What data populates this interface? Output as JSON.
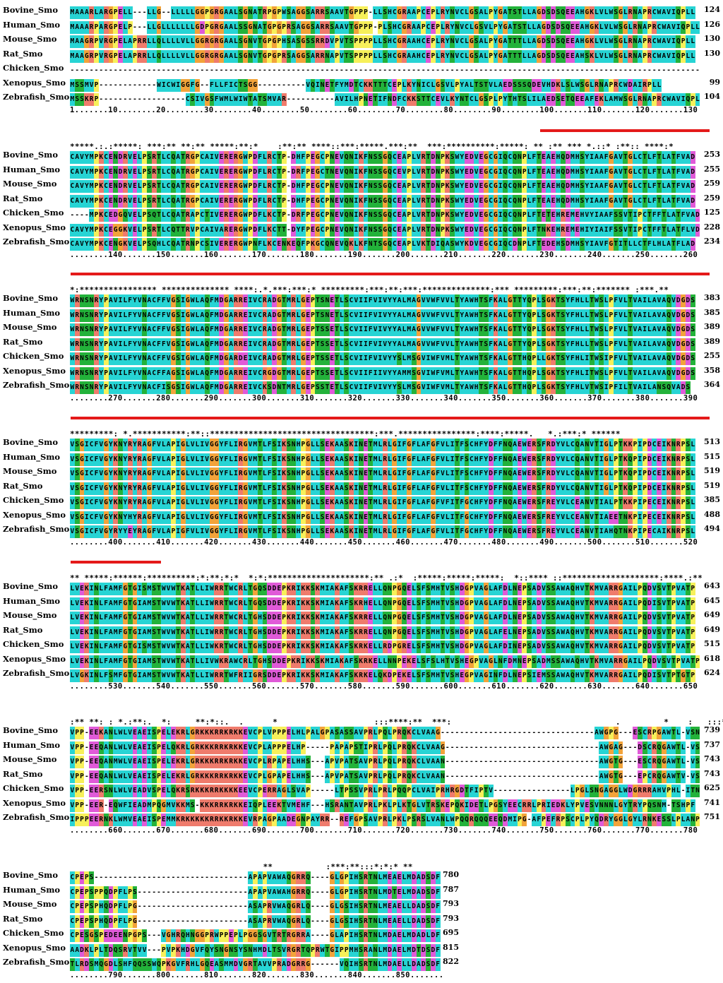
{
  "colors": {
    "cyan": "#27d4d4",
    "green": "#23b23a",
    "magenta": "#e05ad8",
    "yellow": "#f7f05a",
    "orange": "#f2a33a",
    "salmon": "#ef7b6c",
    "red_bar": "#e41a1a"
  },
  "blocks": [
    {
      "start_col_offset": 0,
      "conservation": "",
      "rows": [
        {
          "name": "Bovine_Smo",
          "seq": "MAAARLARGPELL---LLG--LLLLLGGPGRGAALSGNATRPGPWSAGGSARRSAAVTGPPP-LLSHCGRAAPCEPLRYNVCLGSALPYGATSTLLAGDSDSQEEAHGKLVLWSGLRNAPRCWAVIQPLL",
          "end": "124"
        },
        {
          "name": "Human_Smo",
          "seq": "MAAARPARGPELP---LLGLLLLLLLGDPGRGAALSSGNATGPGPRSAGGSARRSAAVTGPPP-PLSHCGRAAPCEPLRYNVCLGSVLPYGATSTLLAGDSDSQEEAHGKLVLWSGLRNAPRCWAVIQPLL",
          "end": "126"
        },
        {
          "name": "Mouse_Smo",
          "seq": "MAAGRPVRGPELAPRRLLQLLLLVLLGGRGRGAALSGNVTGPGPHSASGSSRRDVPVTSPPPPLLSHCGRAAHCEPLRYNVCLGSALPYGATTTLLAGDSDSQEEAHGKLVLWSGLRNAPRCWAVIQPLL",
          "end": "130"
        },
        {
          "name": "Rat_Smo",
          "seq": "MAAGRPVRGPELAPRRLLQLLLLVLLGGRGRGAALSGNVTGPGPRSAGGSARRNAPVTSPPPPLLSHCGRAAHCEPLRYNVCLGSALPYGATTTLLAGDSDSQEEAHSKLVLWSGLRNAPRCWAVIQPLL",
          "end": "130"
        },
        {
          "name": "Chicken_Smo",
          "seq": "-----------------------------------------------------------------------------------------------------------------------------------",
          "end": ""
        },
        {
          "name": "Xenopus_Smo",
          "seq": "MSSMVP------------WICWIGGFG--FLLFICTSGG----------VQINETFYMDTCKKTTTCEPLKYNICLGSVLPYALTSTVLAEDSSSQDEVHDKLSLWSGLRNAPRCWDAIRPLL",
          "end": "99"
        },
        {
          "name": "Zebrafish_Smo",
          "seq": "MSSKRP------------------CSIVGSFWMLWIWTATSMVAR----------AVILHPNETIFNDFCKKSTTCEVLKYNTCLGSPLPYTHTSLILAEDSETQEEAFEKLAMWSGLRNAPRCWAVIQPLL",
          "end": "104"
        }
      ],
      "ruler": "1.......10........20........30........40........50........60........70........80........90........100.......110.......120.......130"
    },
    {
      "conservation": "*****.:.:*****: ***:** **:** *****:**:*    :**:** ****::***:*****.***:**  ***:**********:*****: ** :** *** *.::* :**:: ****:*",
      "rows": [
        {
          "name": "Bovine_Smo",
          "seq": "CAVYMPKCENDRVELPSRTLCQATRGPCAIVERERGWPDFLRCTP-DHFPEGCPNEVQNIKFNSSGQCEAPLVRTDNPKSWYEDVEGCGIQCQNPLFTEAEHQDMHSYIAAFGAVTGLCTLFTLATFVAD",
          "end": "253"
        },
        {
          "name": "Human_Smo",
          "seq": "CAVYMPKCENDRVELPSRTLCQATRGPCAIVERERGWPDFLRCTP-DRFPEGCTNEVQNIKFNSSGQCEVPLVRTDNPKSWYEDVEGCGIQCQNPLFTEAEHQDMHSYIAAFGAVTGLCTLFTLATFVAD",
          "end": "255"
        },
        {
          "name": "Mouse_Smo",
          "seq": "CAVYMPKCENDRVELPSRTLCQATRGPCAIVERERGWPDFLRCTP-DHFPEGCPNEVQNIKFNSSGQCEAPLVRTDNPKSWYEDVEGCGIQCQNPLFTEAEHQDMHSYIAAFGAVTGLCTLFTLATFVAD",
          "end": "259"
        },
        {
          "name": "Rat_Smo",
          "seq": "CAVYMPKCENDRVELPSRTLCQATRGPCAIVERERGWPDFLRCTP-DHFPEGCPNEVQNIKFNSSGQCEAPLVRTDNPKSWYEDVEGCGIQCQNPLFTEAEHQDMHSYIAAFGAVTGLCTLFTLATFVAD",
          "end": "259"
        },
        {
          "name": "Chicken_Smo",
          "seq": "----MPKCEDGQVELPSQTLCQATRAPCTIVERERGWPDFLKCTP-DRFPEGCPNEVQNIKFNSSGQCEAPLVRTDNPKSWYEDVEGCGIQCQNPLFTETEHREMEHVYIAAFSSVTIPCTFFTLATFVAD",
          "end": "125"
        },
        {
          "name": "Xenopus_Smo",
          "seq": "CAVYMPKCEGGKVELPSRTLCQTTRVPCAIVARERGWPDFLKCTT-DYFPEGCPNEVQNIKFNSSGQCEAPLVRTDNPKSWYEDVEGCGIQCQNPLFTNKEHREMEHIYIAIFSSVTIPCTFFTLATFLVD",
          "end": "228"
        },
        {
          "name": "Zebrafish_Smo",
          "seq": "CAVYMPKCENGKVELPSQHLCQATRNPCSIVERERGWPNFLKCENKEQFPKGCQNEVQKLKFNTSGQCEAPLVKTDIQASWYKDVEGCGIQCDNPLFTEDEHSDMHSYIAVFGTITLLCTFLHLATFLAD",
          "end": "234"
        }
      ],
      "ruler": "........140.......150.......160.......170.......180.......190.......200.......210.......220.......230.......240.......250.......260"
    },
    {
      "conservation": "*:**************** ************** ****:.*.***:***:* *********:***:**:***:**************:*** *********:***:**:******* :***.**",
      "rows": [
        {
          "name": "Bovine_Smo",
          "seq": "WRNSNRYPAVILFYVNACFFVGSIGWLAQFMDGARREIVCRADGTMRLGEPTSNETLSCVIIFVIVYYALMAGVVWFVVLTYAWHTSFKALGTTYQPLSGKTSYFHLLTWSLPFVLTVAILAVAQVDGDS",
          "end": "383"
        },
        {
          "name": "Human_Smo",
          "seq": "WRNSNRYPAVILFYVNACFFVGSIGWLAQFMDGARREIVCRADGTMRLGEPTSNETLSCVIIFVIVYYALMAGVVWFVVLTYAWHTSFKALGTTYQPLSGKTSYFHLLTWSLPFVLTVAILAVAQVDGDS",
          "end": "385"
        },
        {
          "name": "Mouse_Smo",
          "seq": "WRNSNRYPAVILFYVNACFFVGSIGWLAQFMDGARREIVCRADGTMRLGEPTSSETLSCVIIFVIVYYALMAGVVWFVVLTYAWHTSFKALGTTYQPLSGKTSYFHLLTWSLPFVLTVAILAVAQVDGDS",
          "end": "389"
        },
        {
          "name": "Rat_Smo",
          "seq": "WRNSNRYPAVILFYVNACFFVGSIGWLAQFMDGARREIVCRADGTMRLGEPTSSETLSCVIIFVIVYYALMAGVVWFVVLTYAWHTSFKALGTTYQPLSGKTSYFHLLTWSLPFVLTVAILAVAQVDGDS",
          "end": "389"
        },
        {
          "name": "Chicken_Smo",
          "seq": "WRNSNRYPAVILFYVNACFFVGSIGWLAQFMDGARDEIVCRADGTMRLGEPTSSETLSCVIIFVIVYYSLMSGVIWFVMLTYAWHTSFKALGTTHQPLLGKTSYFHLITWSIPFVLTVAILAVAQVDGDS",
          "end": "255"
        },
        {
          "name": "Xenopus_Smo",
          "seq": "WRNSNRYPAVILFYVNACFFAGSIGWLAQFMDGARREIVCRGDGTMRLGEPTSSETLSCVIIFIIVYYAMMSGVIWFVMLTYAWHTSFKALGTTHQPLSGKTSYFHLITWSLPFVLTVAILAVAQVDGDS",
          "end": "358"
        },
        {
          "name": "Zebrafish_Smo",
          "seq": "WRNSNRYPAVILFYVNACFISGSIGWLAQFMDGARREIVCKSDNTMRLGEPSSTETLSCVIIFVIVYYSLMSGVIWFVMLTYAWHTSFKALGTTHQPLSGKTSYFHLVTWSIPFILTVAILANSQVADS",
          "end": "364"
        }
      ],
      "ruler": "........270.......280.......290.......300.......310.......320.......330.......340.......350.......360.......370.......380.......390"
    },
    {
      "conservation": "*********: *.***********:**::**********************************:***.****************:****:*****.   *.:***:* ******",
      "rows": [
        {
          "name": "Bovine_Smo",
          "seq": "VSGICFVGYKNYRYRAGFVLAPIGLVLIVGGYFLIRGVMTLFSIKSNHPGLLSEKAASKINETMLRLGIFGFLAFGFVLITFSCHFYDFFNQAEWERSFRDYVLCQANVTIGLPTKKPIPDCEIKNRPSL",
          "end": "513"
        },
        {
          "name": "Human_Smo",
          "seq": "VSGICFVGYKNYRYRAGFVLAPIGLVLIVGGYFLIRGVMTLFSIKSNHPGLLSEKAASKINETMLRLGIFGFLAFGFVLITFSCHFYDFFNQAEWERSFRDYVLCQANVTIGLPTKQPIPDCEIKNRPSL",
          "end": "515"
        },
        {
          "name": "Mouse_Smo",
          "seq": "VSGICFVGYKNYRYRAGFVLAPIGLVLIVGGYFLIRGVMTLFSIKSNHPGLLSEKAASKINETMLRLGIFGFLAFGFVLITFSCHFYDFFNQAEWERSFRDYVLCQANVTIGLPTKQPIPDCEIKNRPSL",
          "end": "519"
        },
        {
          "name": "Rat_Smo",
          "seq": "VSGICFVGYKNYRYRAGFVLAPIGLVLIVGGYFLIRGVMTLFSIKSNHPGLLSEKAASKINETMLRLGIFGFLAFGFVLITFSCHFYDFFNQAEWERSFRDYVLCQANVTIGLPTKQPIPDCEIKNRPSL",
          "end": "519"
        },
        {
          "name": "Chicken_Smo",
          "seq": "VSGICFVGYKNYRYRAGFVLAPIGLVLIVGGYFLIRGVMTLFSIKSNHPGLLSEKAASKINETMLRLGIFGFLAFGFVFITFGCHFYDFFNQAEWERSFREYVLCEANVTIALPTKKPIPECEIKNRPSL",
          "end": "385"
        },
        {
          "name": "Xenopus_Smo",
          "seq": "VSGICFVGYKNYHYRAGFVLAPIGLVLIVGGYFLIRGVMTLFSIKSNHPGLLSEKAASKINETMLRLGIFGFLAFGFVLITFGCHFYDFFNQAEWERSFREYVLCEANVTIAEETNKPIPECEIKNRPSL",
          "end": "488"
        },
        {
          "name": "Zebrafish_Smo",
          "seq": "VSGICFVGYRYYEYRAGFVLAPIGFVLIVGGYFLIRGVMTLFSIKSNHPGLLSEKAASKINETMLRLGIFGFLAFGFVLITFGCHFYDFFNQAEWERSFREYVLCEANVTIAHQTNKPIPECAIKNRPSL",
          "end": "494"
        }
      ],
      "ruler": "........400.......410.......420.......430.......440.......450.......460.......470.......480.......490.......500.......510.......520"
    },
    {
      "conservation": "** *****:******:**********:*:**:*:*  *:*:*********************:** .:*  :*****:*****:*****:  *::**** ::********************:****.:**",
      "rows": [
        {
          "name": "Bovine_Smo",
          "seq": "LVEKINLFAMFGTGISMSTWVWTKATLLIWRRTWCRLTGQSDDEPKRIKKSKMIAKAFSKRRELLQNPGQELSFSMHTVSHDGPVAGLAFDLNEPSADVSSAWAQHVTKMVARRGAILPQDVSVTPVATP",
          "end": "643"
        },
        {
          "name": "Human_Smo",
          "seq": "LVEKINLFAMFGTGIAMSTWVWTKATLLIWRRTWCRLTGQSDDEPKRIKKSKMIAKAFSKRHELLQNPGQELSFSMHTVSHDGPVAGLAFDLNEPSADVSSAWAQHVTKMVARRGAILPQDISVTPVATP",
          "end": "645"
        },
        {
          "name": "Mouse_Smo",
          "seq": "LVEKINLFAMFGTGIAMSTWVWTKATLLIWRRTWCRLTGHSDDEPKRIKKSKMIAKAFSKRRELLQNPGQELSFSMHTVSHDGPVAGLAFDLNEPSADVSSAWAQHVTKMVARRGAILPQDVSVTPVATP",
          "end": "649"
        },
        {
          "name": "Rat_Smo",
          "seq": "LVEKINLFAMFGTGIAMSTWVWTKATLLIWRRTWCRLTGHSDDEPKRIKKSKMIAKAFSKRRELLQNPGQELSFSMHTVSHDGPVAGLAFELNEPSADVSSAWAQHVTKMVARRGAILPQDVSVTPVATP",
          "end": "649"
        },
        {
          "name": "Chicken_Smo",
          "seq": "LVEKINLFAMFGTGISMSTWVWTKATLLIWKRTWCRLTGHSDDEPKRIKKSKMIAKAFSKRKELLRDPGRELSFSMHTVSHDGPVAGLAFDINEPSADVSSAWAQHVTKMVARRGAILPQDVSVTPVATP",
          "end": "515"
        },
        {
          "name": "Xenopus_Smo",
          "seq": "LVEKINLFAMFGTGIAMSTWVWTKATLLIVWKRAWCRLTGHSDDEPKRIKKSKMIAKAFSKRKELLNNPEKELSFSLHTVSHEGPVAGLNFDMNEPSADMSSAWAQHVTKMVARRGAILPQDVSVTPVATP",
          "end": "618"
        },
        {
          "name": "Zebrafish_Smo",
          "seq": "LVGKINLFSMFGTGIAMSTWVWTKATLLIWRRTWFRIIGRSDDEPKRIKKSKMIAKAFSKRKELQKDPEKELSFSMHTVSHEGPVAGINFDLNEPSIEMSSAWAQHVTKMVARRGAILPQDISVTPTGTP",
          "end": "624"
        }
      ],
      "ruler": "........530.......540.......550.......560.......570.......580.......590.......600.......610.......620.......630.......640.......650"
    },
    {
      "conservation": ":** **: : *.:**:.  *:     **:*::.  .      *                    :::****:**  ***:                                  .         *    :   :::*:",
      "rows": [
        {
          "name": "Bovine_Smo",
          "seq": "VPP-EEKANLWLVEAEISPELEKRLGRKKKRRKRKKEVCPLVPPPELHLPALGPASASSAVPRLPQLPRQKCLVAAG--------------------------------AWGPG---ESCRPGAWTL-VSNPF",
          "end": "739"
        },
        {
          "name": "Human_Smo",
          "seq": "VPP-EEQANLWLVEAEISPELQKRLGRKKKRRKRKKEVCPLAPPPELHP-----PAPAPSTIPRLPQLPRQKCLVAAG--------------------------------AWGAG---DSCRQGAWTL-VSNPF",
          "end": "737"
        },
        {
          "name": "Mouse_Smo",
          "seq": "VPP-EEQANMWLVEAEISPELEKRLGRKKKRRKRKKEVCPLRPAPELHHS---APVPATSAVPRLPQLPRQKCLVAAN--------------------------------AWGTG---ESCRQGAWTL-VSNPF",
          "end": "743"
        },
        {
          "name": "Rat_Smo",
          "seq": "VPP-EEQANLWLVEAEISPELEKRLGRKKKRRKRKKEVCPLGPAPELHHS---APVPATSAVPRLPQLPRQKCLVAAN--------------------------------AWGTG---EPCRQGAWTV-VSNPF",
          "end": "743"
        },
        {
          "name": "Chicken_Smo",
          "seq": "VPP-EERSNLWLVEADVSPELQKRSRKKKRRKKKKEEVCPERRAGLSVAP-----LTPSSVPRLPRLPQQPCLVAIPRHRGDTFIPTV----------------LPGLSNGAGGLWDGRRRAHVPHL-ITNPF",
          "end": "625"
        },
        {
          "name": "Xenopus_Smo",
          "seq": "VPP-EER-EQWFIEADMPQGMVKKMS-KKKRRKRKKEIQPLEEKTVMEHF---HSRANTAVPRLPKLPLKTGLVTRSKEPQKIDETLPGSYEECRRLPRIEDKLYPVESVNNNLGYTRYPQSNM-TSHPF",
          "end": "741"
        },
        {
          "name": "Zebrafish_Smo",
          "seq": "IPPPEERNKLWMVEAEISPEMMKRKKKKKRRKKRKKEVRPAGPAADEGNPAYRR--REFGPSAVPRLPKLPSRSLVANLWPQQRQQQEEQDMIPG-AFPEFRPSCPLPYQDRYGGLGYLRNKESSLPLANPL",
          "end": "751"
        }
      ],
      "ruler": "........660.......670.......680.......690.......700.......710.......720.......730.......740.......750.......760.......770.......780"
    },
    {
      "conservation": "                                        **           :***:**:::*:*:* **",
      "rows": [
        {
          "name": "Bovine_Smo",
          "seq": "CPEPS--------------------------------APAPVAWAQGRRQ----GLGPIHSRTNLMEAELMDADSDF",
          "end": "780"
        },
        {
          "name": "Human_Smo",
          "seq": "CPEPSPPQDPFLPS-----------------------APAPVAWAHGRRQ----GLGPIHSRTNLMDTELMDADSDF",
          "end": "787"
        },
        {
          "name": "Mouse_Smo",
          "seq": "CPEPSPHQDPFLPG-----------------------ASAPRVWAQGRLQ----GLGSIHSRTNLMEAELLDADSDF",
          "end": "793"
        },
        {
          "name": "Rat_Smo",
          "seq": "CPEPSPHQDPFLPG-----------------------ASAPRVWAQGRLQ----GLGSIHSRTNLMEAELLDADSDF",
          "end": "793"
        },
        {
          "name": "Chicken_Smo",
          "seq": "CPESGSPEDEENPGPS---VGHRQHNGGPRWPPEPLPGGSGVTRTRGRRA----GLAPIHSRTNLMDAELMDADLDF",
          "end": "695"
        },
        {
          "name": "Xenopus_Smo",
          "seq": "AADKLPLTDQSRVTVV---PVPKHDGVFQYSNGNSYSNHMDLTSVRGRTQPRWTGIPPMHSRANLMDAELMDTDSDF",
          "end": "815"
        },
        {
          "name": "Zebrafish_Smo",
          "seq": "TLRDSMQGDLSHFQQSSWQPKGVFRHLGQEASMMDVGRTAVVPRADGRRG------VQIHSRTNLMDAELLDADSDF",
          "end": "822"
        }
      ],
      "ruler": "........790.......800.......810.......820.......830.......840.......850......."
    }
  ]
}
